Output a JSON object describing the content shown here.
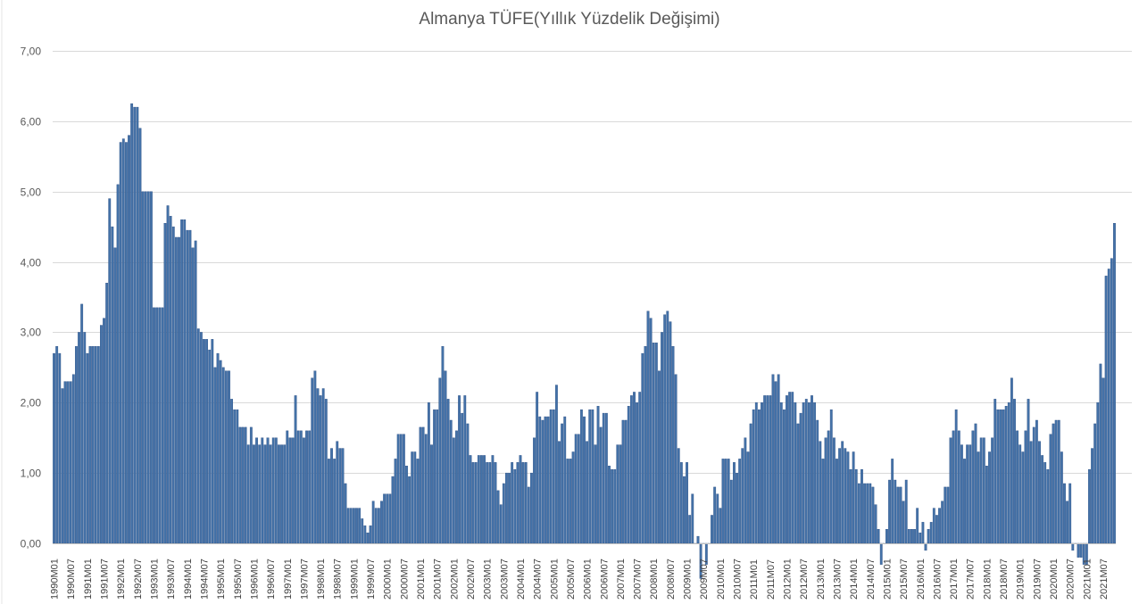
{
  "chart_data": {
    "type": "bar",
    "title": "Almanya TÜFE(Yıllık Yüzdelik Değişimi)",
    "xlabel": "",
    "ylabel": "",
    "ylim": [
      0,
      7
    ],
    "y_ticks": [
      "0,00",
      "1,00",
      "2,00",
      "3,00",
      "4,00",
      "5,00",
      "6,00",
      "7,00"
    ],
    "x_tick_labels": [
      "1990M01",
      "1990M07",
      "1991M01",
      "1991M07",
      "1992M01",
      "1992M07",
      "1993M01",
      "1993M07",
      "1994M01",
      "1994M07",
      "1995M01",
      "1995M07",
      "1996M01",
      "1996M07",
      "1997M01",
      "1997M07",
      "1998M01",
      "1998M07",
      "1999M01",
      "1999M07",
      "2000M01",
      "2000M07",
      "2001M01",
      "2001M07",
      "2002M01",
      "2002M07",
      "2003M01",
      "2003M07",
      "2004M01",
      "2004M07",
      "2005M01",
      "2005M07",
      "2006M01",
      "2006M07",
      "2007M01",
      "2007M07",
      "2008M01",
      "2008M07",
      "2009M01",
      "2009M07",
      "2010M01",
      "2010M07",
      "2011M01",
      "2011M07",
      "2012M01",
      "2012M07",
      "2013M01",
      "2013M07",
      "2014M01",
      "2014M07",
      "2015M01",
      "2015M07",
      "2016M01",
      "2016M07",
      "2017M01",
      "2017M07",
      "2018M01",
      "2018M07",
      "2019M01",
      "2019M07",
      "2020M01",
      "2020M07",
      "2021M01",
      "2021M07"
    ],
    "grid": true,
    "bar_color": "#4472a8",
    "bar_edge_color": "#2f5287",
    "series": [
      {
        "values": [
          2.7,
          2.8,
          2.7,
          2.2,
          2.3,
          2.3,
          2.3,
          2.4,
          2.8,
          3.0,
          3.4,
          3.0,
          2.7,
          2.8,
          2.8,
          2.8,
          2.8,
          3.1,
          3.2,
          3.7,
          4.9,
          4.5,
          4.2,
          5.1,
          5.7,
          5.75,
          5.7,
          5.8,
          6.25,
          6.2,
          6.2,
          5.9,
          5.0,
          5.0,
          5.0,
          5.0,
          3.35,
          3.35,
          3.35,
          3.35,
          4.55,
          4.8,
          4.65,
          4.5,
          4.35,
          4.35,
          4.6,
          4.6,
          4.45,
          4.45,
          4.2,
          4.3,
          3.05,
          3.0,
          2.9,
          2.9,
          2.75,
          2.9,
          2.5,
          2.7,
          2.6,
          2.5,
          2.45,
          2.45,
          2.05,
          1.9,
          1.9,
          1.65,
          1.65,
          1.65,
          1.4,
          1.65,
          1.4,
          1.5,
          1.4,
          1.5,
          1.4,
          1.5,
          1.4,
          1.5,
          1.5,
          1.4,
          1.4,
          1.4,
          1.6,
          1.5,
          1.5,
          2.1,
          1.6,
          1.6,
          1.5,
          1.6,
          1.6,
          2.35,
          2.45,
          2.2,
          2.1,
          2.2,
          2.05,
          1.2,
          1.35,
          1.2,
          1.45,
          1.35,
          1.35,
          0.85,
          0.5,
          0.5,
          0.5,
          0.5,
          0.5,
          0.35,
          0.25,
          0.15,
          0.25,
          0.6,
          0.5,
          0.5,
          0.6,
          0.7,
          0.7,
          0.7,
          0.95,
          1.2,
          1.55,
          1.55,
          1.55,
          1.1,
          0.95,
          1.3,
          1.3,
          1.2,
          1.65,
          1.65,
          1.55,
          2.0,
          1.4,
          1.9,
          1.9,
          2.35,
          2.8,
          2.45,
          2.05,
          1.75,
          1.5,
          1.6,
          2.1,
          1.85,
          2.1,
          1.7,
          1.25,
          1.15,
          1.15,
          1.25,
          1.25,
          1.25,
          1.15,
          1.15,
          1.25,
          1.15,
          0.75,
          0.55,
          0.85,
          1.0,
          1.0,
          1.15,
          1.05,
          1.15,
          1.25,
          1.15,
          1.15,
          0.8,
          1.0,
          1.5,
          2.15,
          1.8,
          1.75,
          1.8,
          1.8,
          1.9,
          1.9,
          2.25,
          1.45,
          1.7,
          1.8,
          1.2,
          1.2,
          1.3,
          1.55,
          1.55,
          1.9,
          1.8,
          1.45,
          1.9,
          1.9,
          1.4,
          1.95,
          1.65,
          1.85,
          1.85,
          1.1,
          1.05,
          1.05,
          1.4,
          1.4,
          1.75,
          1.75,
          1.95,
          2.1,
          2.15,
          2.0,
          2.15,
          2.7,
          2.8,
          3.3,
          3.2,
          2.85,
          2.85,
          2.45,
          3.0,
          3.25,
          3.3,
          3.15,
          2.8,
          2.4,
          1.35,
          1.15,
          0.95,
          1.15,
          0.4,
          0.7,
          0.0,
          0.1,
          -0.5,
          0.0,
          -0.3,
          0.0,
          0.4,
          0.8,
          0.7,
          0.5,
          1.2,
          1.2,
          1.2,
          0.9,
          1.15,
          1.0,
          1.2,
          1.35,
          1.5,
          1.3,
          1.7,
          1.9,
          2.0,
          1.9,
          2.0,
          2.1,
          2.1,
          2.1,
          2.4,
          2.3,
          2.4,
          2.0,
          1.9,
          2.1,
          2.15,
          2.15,
          2.0,
          1.7,
          1.85,
          2.0,
          2.05,
          2.0,
          2.1,
          2.0,
          1.75,
          1.45,
          1.2,
          1.5,
          1.6,
          1.9,
          1.5,
          1.2,
          1.35,
          1.45,
          1.35,
          1.3,
          1.05,
          1.3,
          1.05,
          0.85,
          1.05,
          0.85,
          0.85,
          0.85,
          0.8,
          0.55,
          0.2,
          -0.3,
          0.0,
          0.2,
          0.9,
          1.2,
          0.9,
          0.8,
          0.8,
          0.6,
          0.9,
          0.2,
          0.2,
          0.2,
          0.5,
          0.15,
          0.3,
          -0.1,
          0.2,
          0.3,
          0.5,
          0.4,
          0.5,
          0.6,
          0.8,
          0.8,
          1.5,
          1.6,
          1.9,
          1.6,
          1.4,
          1.2,
          1.4,
          1.4,
          1.6,
          1.7,
          1.3,
          1.5,
          1.5,
          1.1,
          1.3,
          1.5,
          2.05,
          1.9,
          1.9,
          1.9,
          1.95,
          2.0,
          2.35,
          2.05,
          1.6,
          1.4,
          1.3,
          1.6,
          2.05,
          1.45,
          1.65,
          1.75,
          1.45,
          1.25,
          1.15,
          1.05,
          1.55,
          1.7,
          1.75,
          1.75,
          1.3,
          0.85,
          0.6,
          0.85,
          -0.1,
          0.0,
          -0.2,
          -0.2,
          -0.3,
          -0.3,
          1.05,
          1.35,
          1.7,
          2.0,
          2.55,
          2.35,
          3.8,
          3.9,
          4.05,
          4.55
        ]
      }
    ]
  }
}
